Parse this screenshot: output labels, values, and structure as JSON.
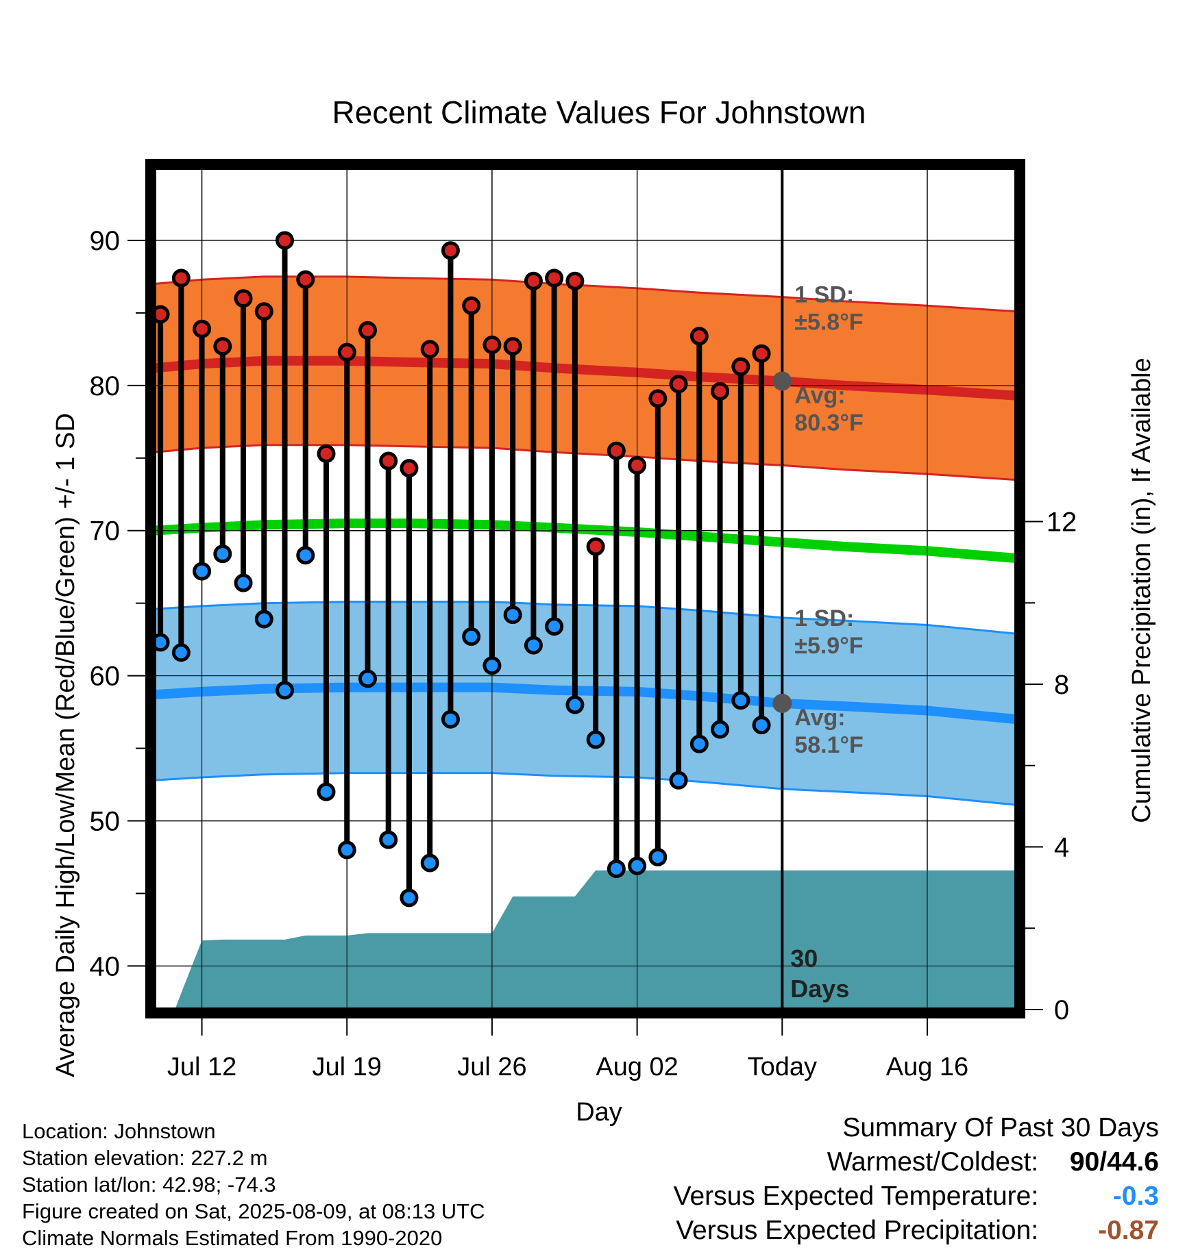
{
  "chart_data": {
    "type": "line",
    "title": "Recent Climate Values For Johnstown",
    "xlabel": "Day",
    "ylabel": "Average Daily High/Low/Mean (Red/Blue/Green) +/- 1 SD",
    "y2label": "Cumulative Precipitation (in), If Available",
    "ylim": [
      37,
      95
    ],
    "y2lim": [
      0,
      20.7
    ],
    "xlim": [
      -2.3,
      39.3
    ],
    "x_unit": "days after Jul 12",
    "yticks": [
      "40",
      "50",
      "60",
      "70",
      "80",
      "90"
    ],
    "y2ticks": [
      "0",
      "4",
      "8",
      "12"
    ],
    "xticks": [
      {
        "day": 0,
        "label": "Jul 12"
      },
      {
        "day": 7,
        "label": "Jul 19"
      },
      {
        "day": 14,
        "label": "Jul 26"
      },
      {
        "day": 21,
        "label": "Aug 02"
      },
      {
        "day": 28,
        "label": "Today"
      },
      {
        "day": 35,
        "label": "Aug 16"
      }
    ],
    "today_day": 28,
    "grid": true,
    "days": [
      -2,
      -1,
      0,
      1,
      2,
      3,
      4,
      5,
      6,
      7,
      8,
      9,
      10,
      11,
      12,
      13,
      14,
      15,
      16,
      17,
      18,
      19,
      20,
      21,
      22,
      23,
      24,
      25,
      26,
      27
    ],
    "highs": [
      84.9,
      87.4,
      83.9,
      82.7,
      86.0,
      85.1,
      90.0,
      87.3,
      75.3,
      82.3,
      83.8,
      74.8,
      74.3,
      82.5,
      89.3,
      85.5,
      82.8,
      82.7,
      87.2,
      87.4,
      87.2,
      68.9,
      75.5,
      74.5,
      79.1,
      80.1,
      83.4,
      79.6,
      81.3,
      82.2
    ],
    "lows": [
      62.3,
      61.6,
      67.2,
      68.4,
      66.4,
      63.9,
      59.0,
      68.3,
      52.0,
      48.0,
      59.8,
      48.7,
      44.7,
      47.1,
      57.0,
      62.7,
      60.7,
      64.2,
      62.1,
      63.4,
      58.0,
      55.6,
      46.7,
      46.9,
      47.5,
      52.8,
      55.3,
      56.3,
      58.3,
      56.6
    ],
    "normals": {
      "days": [
        -2.3,
        0,
        3,
        7,
        10,
        14,
        17,
        21,
        24,
        28,
        31,
        35,
        39.3
      ],
      "high_avg": [
        81.2,
        81.5,
        81.7,
        81.7,
        81.6,
        81.5,
        81.2,
        80.9,
        80.6,
        80.3,
        80.0,
        79.7,
        79.3
      ],
      "low_avg": [
        58.7,
        58.9,
        59.1,
        59.2,
        59.2,
        59.2,
        59.0,
        58.9,
        58.6,
        58.1,
        57.9,
        57.6,
        57.0
      ],
      "mean_avg": [
        70.0,
        70.2,
        70.4,
        70.5,
        70.5,
        70.4,
        70.2,
        69.9,
        69.6,
        69.2,
        68.9,
        68.6,
        68.1
      ],
      "high_sd": 5.8,
      "low_sd": 5.9,
      "high_band_color": "#f47a30",
      "high_line_color": "#d42422",
      "low_band_color": "#81c1e8",
      "low_line_color": "#1e8fff",
      "mean_color": "#00d000",
      "high_marker_color": "#d42422",
      "low_marker_color": "#1e8fff"
    },
    "precip": {
      "days": [
        -1.3,
        -1,
        0,
        1,
        2,
        3,
        4,
        5,
        6,
        7,
        8,
        9,
        10,
        11,
        12,
        13,
        14,
        15,
        16,
        17,
        18,
        19,
        20,
        21,
        22,
        23,
        24,
        25,
        26,
        27,
        28,
        39.3
      ],
      "cumulative": [
        0,
        0.4,
        1.7,
        1.72,
        1.72,
        1.72,
        1.72,
        1.82,
        1.82,
        1.82,
        1.88,
        1.88,
        1.88,
        1.88,
        1.88,
        1.88,
        1.88,
        2.78,
        2.78,
        2.78,
        2.78,
        3.42,
        3.42,
        3.42,
        3.42,
        3.42,
        3.42,
        3.42,
        3.42,
        3.42,
        3.42,
        3.42
      ],
      "color": "#4a9ba5"
    },
    "annotations": {
      "high_sd_label": "1 SD:",
      "high_sd_value": "±5.8°F",
      "high_avg_label": "Avg:",
      "high_avg_value": "80.3°F",
      "low_sd_label": "1 SD:",
      "low_sd_value": "±5.9°F",
      "low_avg_label": "Avg:",
      "low_avg_value": "58.1°F",
      "days_label_1": "30",
      "days_label_2": "Days",
      "text_color": "#555555"
    }
  },
  "footer": {
    "location": "Location: Johnstown",
    "elevation": "Station elevation: 227.2 m",
    "latlon": "Station lat/lon: 42.98; -74.3",
    "created": "Figure created on Sat, 2025-08-09, at 08:13 UTC",
    "normals": "Climate Normals Estimated From 1990-2020"
  },
  "summary": {
    "title": "Summary Of Past 30 Days",
    "warmest_label": "Warmest/Coldest:",
    "warmest_value": "90/44.6",
    "temp_label": "Versus Expected Temperature:",
    "temp_value": "-0.3",
    "temp_color": "#1e8fff",
    "precip_label": "Versus Expected Precipitation:",
    "precip_value": "-0.87",
    "precip_color": "#a0522d"
  }
}
